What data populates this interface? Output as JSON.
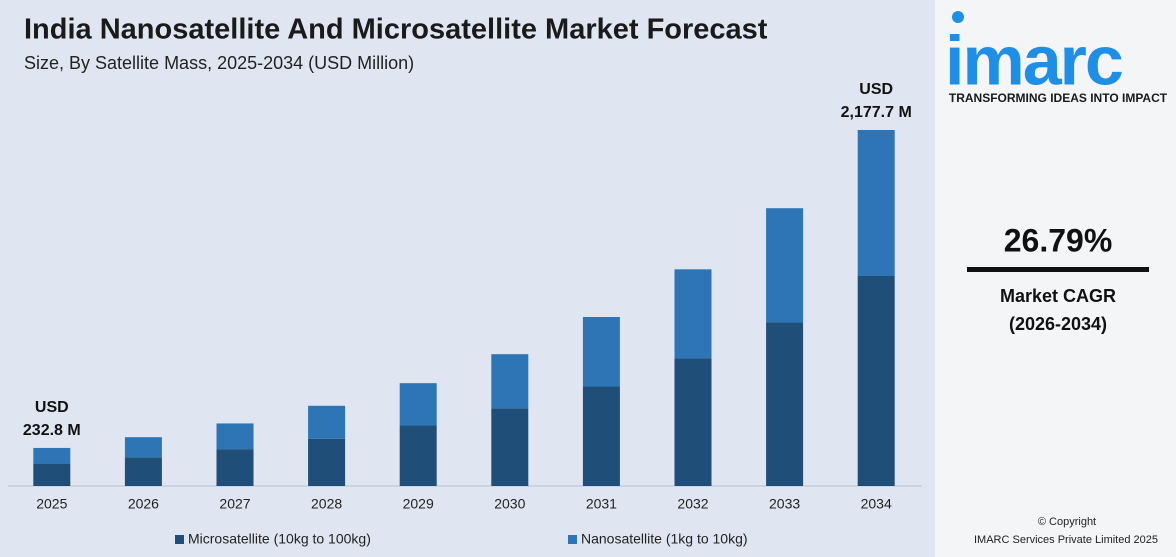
{
  "chart_data": {
    "type": "stacked_bar",
    "title": "India Nanosatellite And Microsatellite Market Forecast",
    "subtitle": "Size, By Satellite Mass, 2025-2034 (USD Million)",
    "categories": [
      "2025",
      "2026",
      "2027",
      "2028",
      "2029",
      "2030",
      "2031",
      "2032",
      "2033",
      "2034"
    ],
    "series": [
      {
        "name": "Microsatellite (10kg to 100kg)",
        "color": "#1f4e79",
        "values": [
          137.1,
          175.7,
          225.4,
          288.9,
          370.4,
          474.8,
          608.8,
          780.5,
          1000.6,
          1284.6
        ]
      },
      {
        "name": "Nanosatellite (1kg to 10kg)",
        "color": "#2e75b6",
        "values": [
          95.7,
          122.8,
          157.3,
          201.7,
          258.6,
          331.6,
          425.0,
          544.9,
          698.6,
          893.1
        ]
      }
    ],
    "annotations": [
      {
        "lines": [
          "USD",
          "232.8 M"
        ]
      },
      {
        "lines": [
          "USD",
          "2,177.7 M"
        ]
      }
    ]
  },
  "side_panel": {
    "logo": "imarc",
    "tagline": "TRANSFORMING IDEAS INTO IMPACT",
    "cagr": "26.79%",
    "cagr_label": "Market CAGR",
    "cagr_period": "(2026-2034)",
    "copyright": "© Copyright",
    "company": "IMARC Services Private Limited 2025"
  }
}
